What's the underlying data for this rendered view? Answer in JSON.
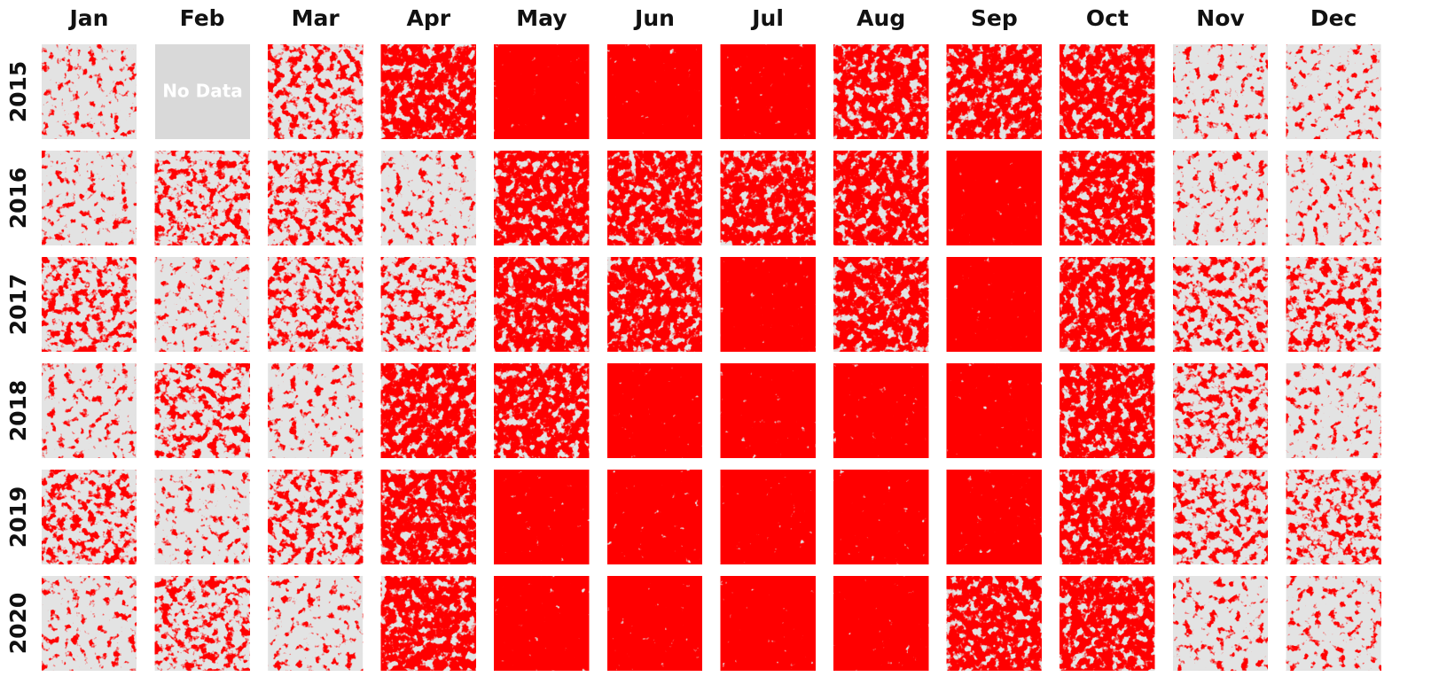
{
  "months": [
    "Jan",
    "Feb",
    "Mar",
    "Apr",
    "May",
    "Jun",
    "Jul",
    "Aug",
    "Sep",
    "Oct",
    "Nov",
    "Dec"
  ],
  "years": [
    "2015",
    "2016",
    "2017",
    "2018",
    "2019",
    "2020"
  ],
  "no_data_label": "No Data"
}
